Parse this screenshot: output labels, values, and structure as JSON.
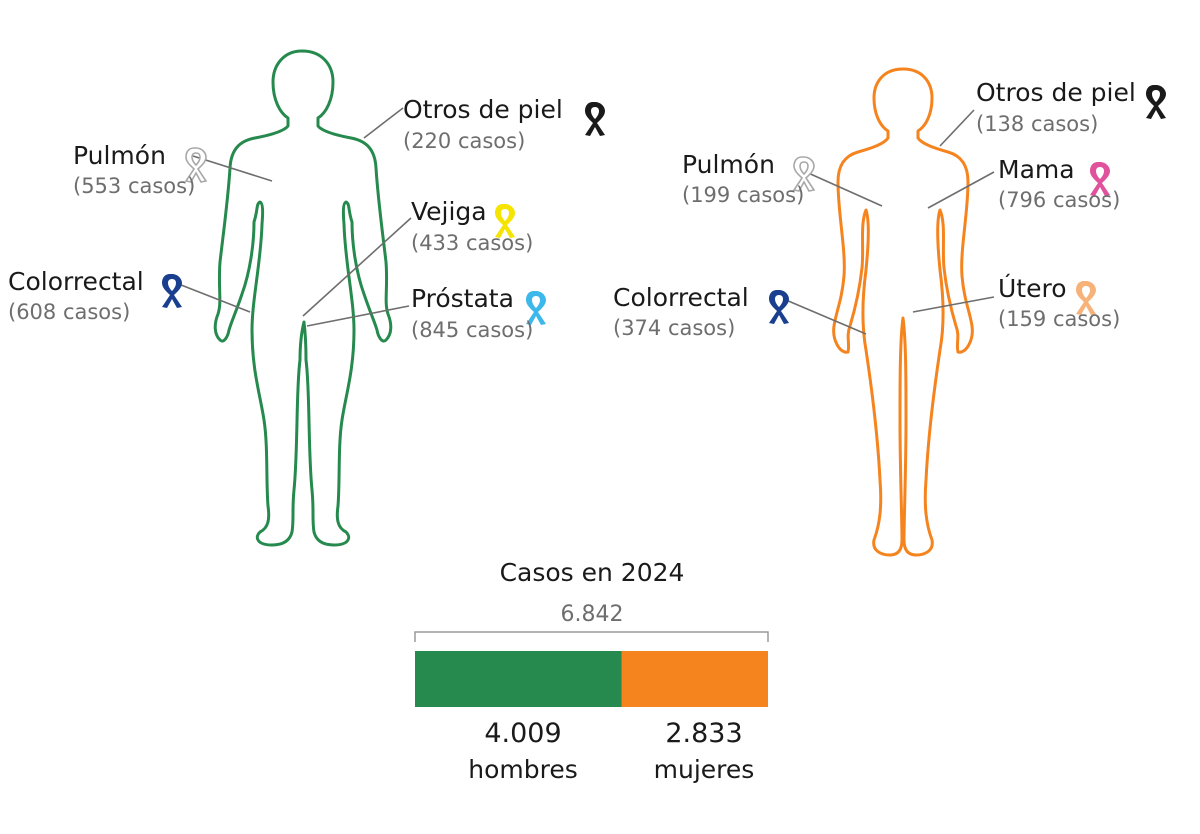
{
  "colors": {
    "men": "#26894d",
    "women": "#f5841f",
    "leader": "#6e6e6e"
  },
  "men": {
    "labels": [
      {
        "key": "otros",
        "name": "Otros de piel",
        "cases": "(220 casos)",
        "ribbon_color": "#1a1a1a",
        "ribbon_style": "solid"
      },
      {
        "key": "pulmon",
        "name": "Pulmón",
        "cases": "(553 casos)",
        "ribbon_color": "#c8c8c8",
        "ribbon_style": "outline"
      },
      {
        "key": "vejiga",
        "name": "Vejiga",
        "cases": "(433 casos)",
        "ribbon_color": "#f5e400",
        "ribbon_style": "solid"
      },
      {
        "key": "colorrectal",
        "name": "Colorrectal",
        "cases": "(608 casos)",
        "ribbon_color": "#1a3f8f",
        "ribbon_style": "solid"
      },
      {
        "key": "prostata",
        "name": "Próstata",
        "cases": "(845 casos)",
        "ribbon_color": "#3db8ea",
        "ribbon_style": "solid"
      }
    ]
  },
  "women": {
    "labels": [
      {
        "key": "otros",
        "name": "Otros de piel",
        "cases": "(138 casos)",
        "ribbon_color": "#1a1a1a",
        "ribbon_style": "solid"
      },
      {
        "key": "pulmon",
        "name": "Pulmón",
        "cases": "(199 casos)",
        "ribbon_color": "#c8c8c8",
        "ribbon_style": "outline"
      },
      {
        "key": "mama",
        "name": "Mama",
        "cases": "(796 casos)",
        "ribbon_color": "#e0529c",
        "ribbon_style": "solid"
      },
      {
        "key": "colorrectal",
        "name": "Colorrectal",
        "cases": "(374 casos)",
        "ribbon_color": "#1a3f8f",
        "ribbon_style": "solid"
      },
      {
        "key": "utero",
        "name": "Útero",
        "cases": "(159 casos)",
        "ribbon_color": "#f7b27a",
        "ribbon_style": "solid"
      }
    ]
  },
  "summary": {
    "title": "Casos en 2024",
    "total_label": "6.842",
    "men_value_label": "4.009",
    "men_label": "hombres",
    "women_value_label": "2.833",
    "women_label": "mujeres"
  },
  "chart_data": {
    "type": "bar",
    "title": "Casos en 2024",
    "stacked": true,
    "orientation": "horizontal",
    "categories": [
      "hombres",
      "mujeres"
    ],
    "values": [
      4009,
      2833
    ],
    "total": 6842
  }
}
